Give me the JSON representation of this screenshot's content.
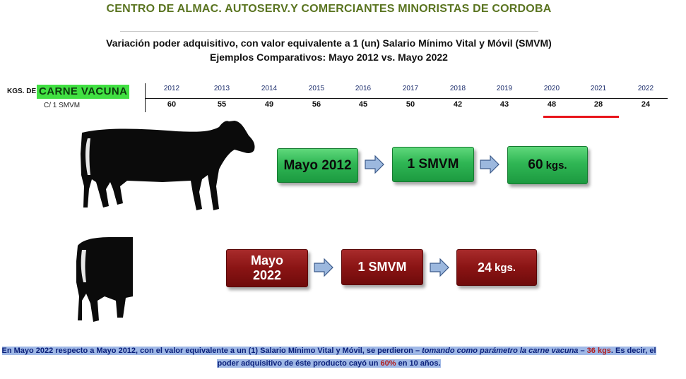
{
  "header": {
    "org_title": "CENTRO DE ALMAC. AUTOSERV.Y COMERCIANTES MINORISTAS DE CORDOBA",
    "subtitle_line1": "Variación poder adquisitivo, con valor equivalente a 1 (un) Salario Mínimo Vital y Móvil (SMVM)",
    "subtitle_line2": "Ejemplos Comparativos: Mayo 2012 vs. Mayo 2022"
  },
  "table": {
    "row_label_prefix": "KGS. DE",
    "product": "CARNE VACUNA",
    "row_label_sub": "C/ 1 SMVM",
    "years": [
      "2012",
      "2013",
      "2014",
      "2015",
      "2016",
      "2017",
      "2018",
      "2019",
      "2020",
      "2021",
      "2022"
    ],
    "kgs": [
      "60",
      "55",
      "49",
      "56",
      "45",
      "50",
      "42",
      "43",
      "48",
      "28",
      "24"
    ]
  },
  "comparison_2012": {
    "period": "Mayo 2012",
    "salary": "1 SMVM",
    "amount": "60",
    "unit": "kgs."
  },
  "comparison_2022": {
    "period_line1": "Mayo",
    "period_line2": "2022",
    "salary": "1 SMVM",
    "amount": "24",
    "unit": "kgs."
  },
  "conclusion": {
    "p1": "En Mayo 2022 respecto a Mayo 2012, con el valor equivalente a un (1) Salario Mínimo Vital y Móvil, se perdieron – ",
    "p2_italic": "tomando como parámetro la carne vacuna",
    "p3": " – ",
    "p4_red": "36 kgs",
    "p5": ".  Es decir, el poder adquisitivo de éste producto cayó un ",
    "p6_red": "60%",
    "p7": " en 10 años."
  },
  "colors": {
    "title_green": "#5a7420",
    "product_highlight": "#41e042",
    "box_green": "#2fb654",
    "box_red": "#8a1414",
    "underline_red": "#e8141b",
    "text_blue": "#0a1f7a",
    "conclusion_highlight": "#9fb8e6"
  }
}
